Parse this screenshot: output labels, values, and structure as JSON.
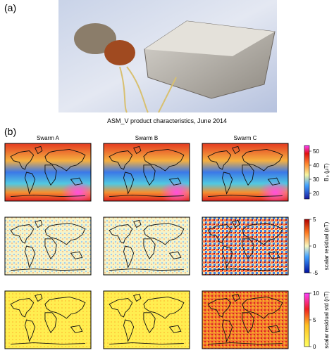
{
  "panel_a": {
    "label": "(a)",
    "caption": "ASM_V product characteristics, June 2014"
  },
  "panel_b": {
    "label": "(b)",
    "columns": [
      "Swarm A",
      "Swarm B",
      "Swarm C"
    ],
    "rows": [
      {
        "colorbar_label": "B₀ (μT)",
        "ticks": [
          20,
          30,
          40,
          50
        ]
      },
      {
        "colorbar_label": "scalar residual (nT)",
        "ticks": [
          -5,
          0,
          5
        ]
      },
      {
        "colorbar_label": "scalar residual std (nT)",
        "ticks": [
          0,
          5,
          10
        ]
      }
    ]
  }
}
